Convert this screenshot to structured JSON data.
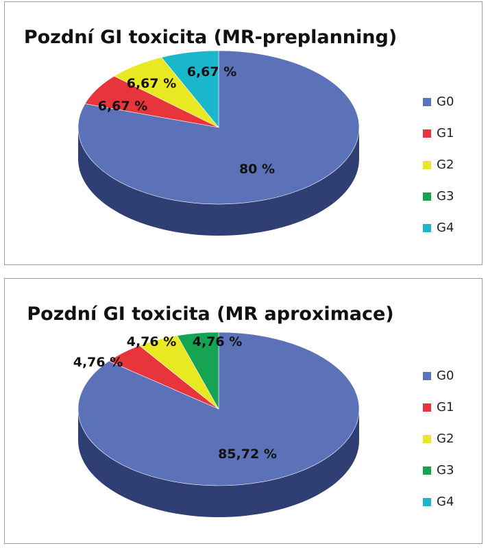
{
  "chart_data": [
    {
      "type": "pie",
      "title": "Pozdní GI toxicita (MR-preplanning)",
      "categories": [
        "G0",
        "G1",
        "G2",
        "G3",
        "G4"
      ],
      "values": [
        80,
        6.67,
        6.67,
        0,
        6.67
      ],
      "labels": [
        "80 %",
        "6,67 %",
        "6,67 %",
        "",
        "6,67 %"
      ],
      "legend_placement": "right",
      "three_d": true
    },
    {
      "type": "pie",
      "title": "Pozdní GI toxicita (MR aproximace)",
      "categories": [
        "G0",
        "G1",
        "G2",
        "G3",
        "G4"
      ],
      "values": [
        85.72,
        4.76,
        4.76,
        4.76,
        0
      ],
      "labels": [
        "85,72 %",
        "4,76 %",
        "4,76 %",
        "4,76 %",
        ""
      ],
      "legend_placement": "right",
      "three_d": true
    }
  ],
  "colors": {
    "G0": "#5b72b8",
    "G1": "#e8343b",
    "G2": "#e9e923",
    "G3": "#16a352",
    "G4": "#19b7c9"
  },
  "side_colors": {
    "G0": "#2f3f74",
    "G1": "#8c1c20",
    "G2": "#8d8d14",
    "G3": "#0b5f2f",
    "G4": "#0e6e79"
  }
}
